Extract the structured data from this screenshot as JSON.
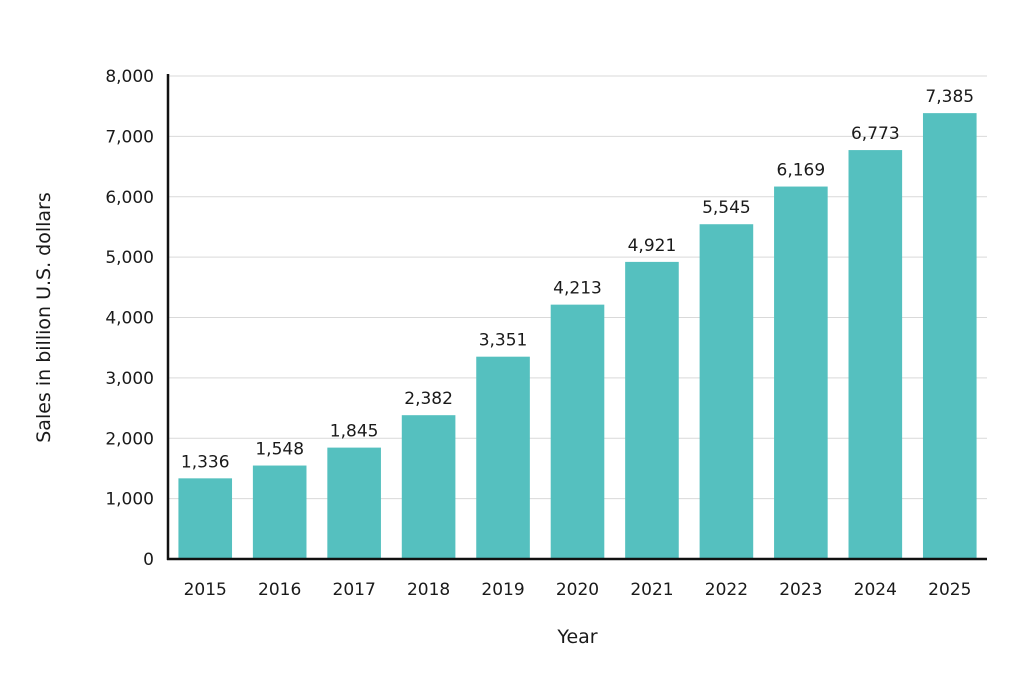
{
  "chart_data": {
    "type": "bar",
    "categories": [
      "2015",
      "2016",
      "2017",
      "2018",
      "2019",
      "2020",
      "2021",
      "2022",
      "2023",
      "2024",
      "2025"
    ],
    "values": [
      1336,
      1548,
      1845,
      2382,
      3351,
      4213,
      4921,
      5545,
      6169,
      6773,
      7385
    ],
    "value_labels": [
      "1,336",
      "1,548",
      "1,845",
      "2,382",
      "3,351",
      "4,213",
      "4,921",
      "5,545",
      "6,169",
      "6,773",
      "7,385"
    ],
    "title": "",
    "xlabel": "Year",
    "ylabel": "Sales in billion U.S. dollars",
    "ylim": [
      0,
      8000
    ],
    "yticks": [
      0,
      1000,
      2000,
      3000,
      4000,
      5000,
      6000,
      7000,
      8000
    ],
    "ytick_labels": [
      "0",
      "1,000",
      "2,000",
      "3,000",
      "4,000",
      "5,000",
      "6,000",
      "7,000",
      "8,000"
    ],
    "grid": true,
    "bar_color": "#55c0bf",
    "grid_color": "#d9d9d9",
    "axis_color": "#111111"
  }
}
